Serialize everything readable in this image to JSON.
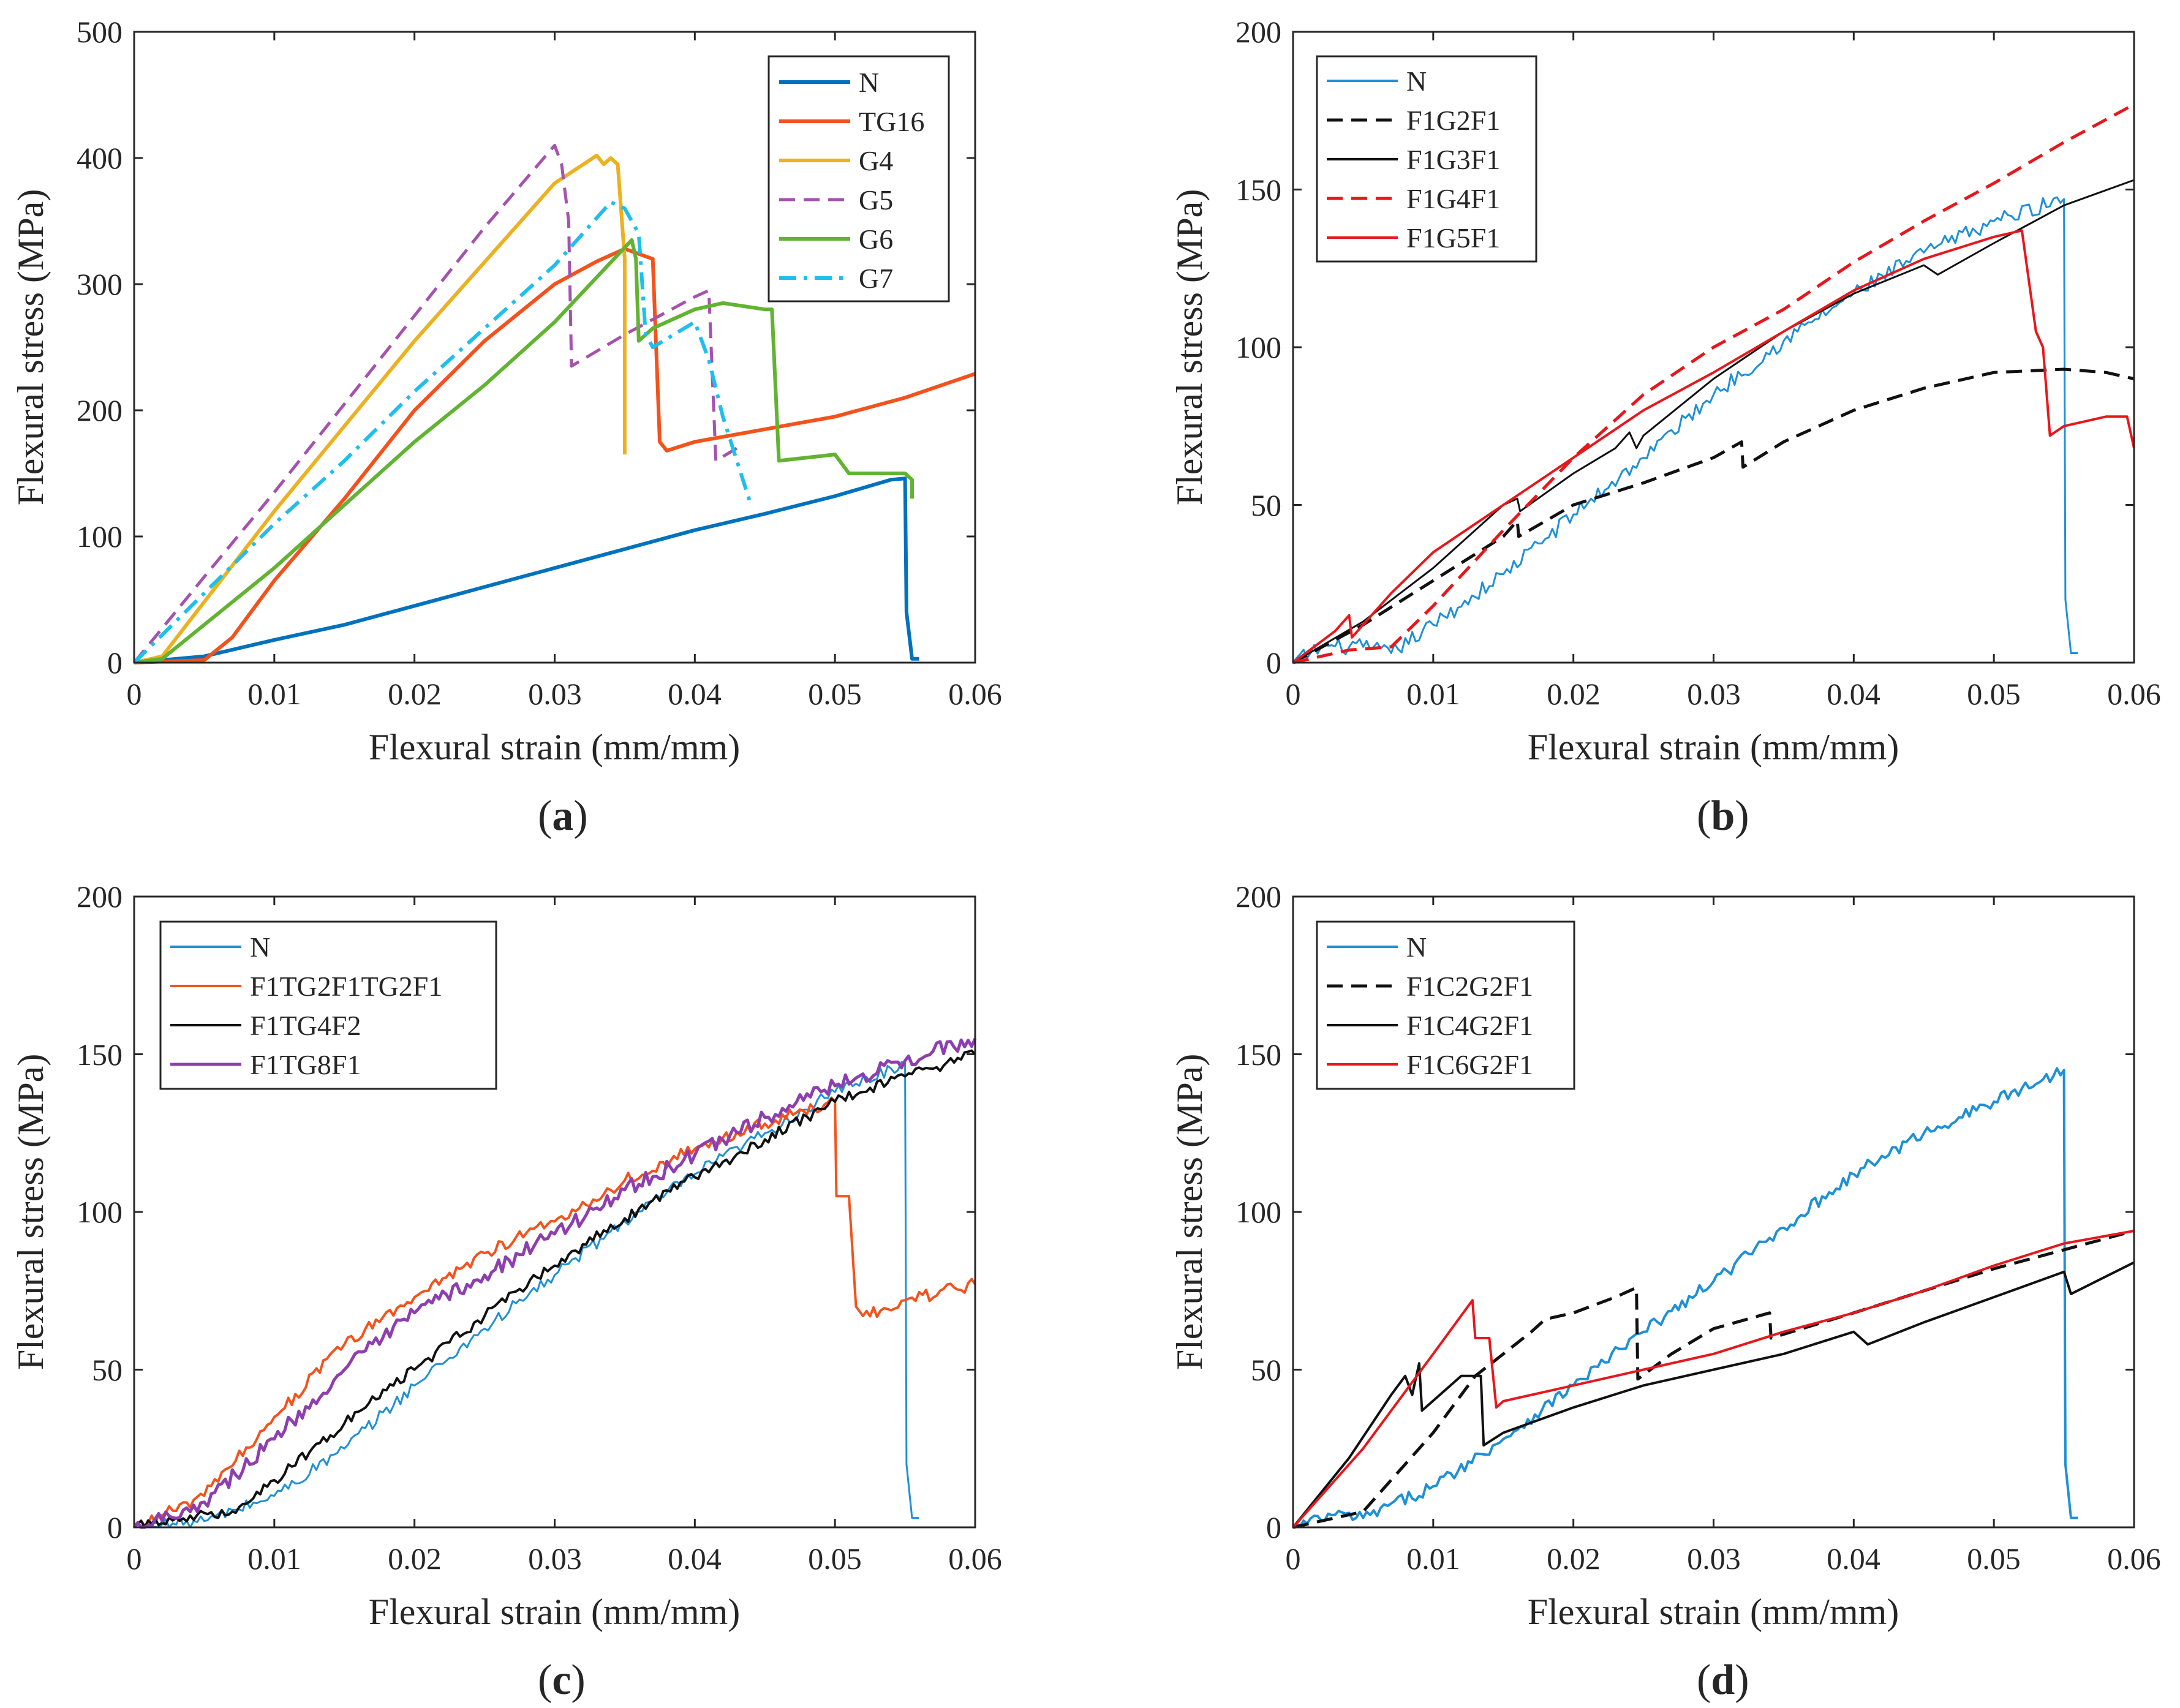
{
  "figure": {
    "colors": {
      "blue": "#0072BD",
      "lightblue": "#1E90D6",
      "orange": "#F4521C",
      "yellow": "#EDB120",
      "purple": "#A552AE",
      "green": "#61B331",
      "cyan": "#1EBFEF",
      "black": "#111111",
      "red": "#E8171C",
      "violet": "#8E3EAE",
      "axis": "#262626"
    }
  },
  "chart_data": [
    {
      "id": "a",
      "type": "line",
      "caption": "(a)",
      "caption_letter": "a",
      "xlabel": "Flexural strain (mm/mm)",
      "ylabel": "Flexural stress (MPa)",
      "xlim": [
        0,
        0.06
      ],
      "ylim": [
        0,
        500
      ],
      "xticks": [
        0,
        0.01,
        0.02,
        0.03,
        0.04,
        0.05,
        0.06
      ],
      "xtick_labels": [
        "0",
        "0.01",
        "0.02",
        "0.03",
        "0.04",
        "0.05",
        "0.06"
      ],
      "yticks": [
        0,
        100,
        200,
        300,
        400,
        500
      ],
      "ytick_labels": [
        "0",
        "100",
        "200",
        "300",
        "400",
        "500"
      ],
      "legend_position": "top-right",
      "series": [
        {
          "name": "N",
          "color": "#0072BD",
          "width": 6,
          "dash": "solid",
          "x": [
            0,
            0.005,
            0.01,
            0.015,
            0.02,
            0.025,
            0.03,
            0.035,
            0.04,
            0.045,
            0.05,
            0.054,
            0.055,
            0.0551,
            0.0555,
            0.056
          ],
          "y": [
            0,
            5,
            18,
            30,
            45,
            60,
            75,
            90,
            105,
            118,
            132,
            145,
            146,
            40,
            3,
            3
          ]
        },
        {
          "name": "TG16",
          "color": "#F4521C",
          "width": 6,
          "dash": "solid",
          "x": [
            0,
            0.005,
            0.007,
            0.01,
            0.015,
            0.02,
            0.025,
            0.03,
            0.033,
            0.035,
            0.037,
            0.0375,
            0.038,
            0.04,
            0.045,
            0.05,
            0.055,
            0.06
          ],
          "y": [
            0,
            2,
            20,
            65,
            130,
            200,
            255,
            300,
            318,
            328,
            320,
            175,
            168,
            175,
            185,
            195,
            210,
            229
          ]
        },
        {
          "name": "G4",
          "color": "#EDB120",
          "width": 6,
          "dash": "solid",
          "x": [
            0,
            0.002,
            0.01,
            0.02,
            0.03,
            0.033,
            0.0335,
            0.034,
            0.0345,
            0.035,
            0.035
          ],
          "y": [
            0,
            5,
            120,
            255,
            380,
            402,
            395,
            400,
            395,
            320,
            165
          ]
        },
        {
          "name": "G5",
          "color": "#A552AE",
          "width": 5,
          "dash": "dash",
          "x": [
            0,
            0.005,
            0.01,
            0.015,
            0.02,
            0.025,
            0.03,
            0.0305,
            0.031,
            0.0312,
            0.035,
            0.04,
            0.041,
            0.0415,
            0.043
          ],
          "y": [
            0,
            68,
            135,
            205,
            275,
            345,
            410,
            395,
            350,
            235,
            260,
            290,
            295,
            160,
            170
          ]
        },
        {
          "name": "G6",
          "color": "#61B331",
          "width": 6,
          "dash": "solid",
          "x": [
            0,
            0.002,
            0.005,
            0.01,
            0.015,
            0.02,
            0.025,
            0.03,
            0.0355,
            0.0358,
            0.036,
            0.037,
            0.04,
            0.042,
            0.045,
            0.0455,
            0.046,
            0.05,
            0.051,
            0.055,
            0.0555,
            0.0555
          ],
          "y": [
            0,
            3,
            30,
            75,
            125,
            175,
            220,
            270,
            335,
            320,
            255,
            265,
            280,
            285,
            280,
            280,
            160,
            165,
            150,
            150,
            145,
            130
          ]
        },
        {
          "name": "G7",
          "color": "#1EBFEF",
          "width": 6,
          "dash": "dashdot",
          "x": [
            0,
            0.005,
            0.01,
            0.015,
            0.02,
            0.025,
            0.03,
            0.034,
            0.035,
            0.036,
            0.0365,
            0.037,
            0.04,
            0.041,
            0.042,
            0.043,
            0.044
          ],
          "y": [
            0,
            55,
            110,
            160,
            215,
            265,
            315,
            365,
            360,
            340,
            260,
            250,
            270,
            240,
            195,
            160,
            125
          ]
        }
      ]
    },
    {
      "id": "b",
      "type": "line",
      "caption": "(b)",
      "caption_letter": "b",
      "xlabel": "Flexural strain (mm/mm)",
      "ylabel": "Flexural stress (MPa)",
      "xlim": [
        0,
        0.06
      ],
      "ylim": [
        0,
        200
      ],
      "xticks": [
        0,
        0.01,
        0.02,
        0.03,
        0.04,
        0.05,
        0.06
      ],
      "xtick_labels": [
        "0",
        "0.01",
        "0.02",
        "0.03",
        "0.04",
        "0.05",
        "0.06"
      ],
      "yticks": [
        0,
        50,
        100,
        150,
        200
      ],
      "ytick_labels": [
        "0",
        "50",
        "100",
        "150",
        "200"
      ],
      "legend_position": "top-left",
      "series": [
        {
          "name": "N",
          "color": "#1E90D6",
          "width": 3,
          "dash": "solid",
          "noise": 2.5,
          "x": [
            0,
            0.002,
            0.005,
            0.007,
            0.01,
            0.015,
            0.02,
            0.025,
            0.03,
            0.035,
            0.04,
            0.045,
            0.05,
            0.055,
            0.0551,
            0.0555,
            0.056
          ],
          "y": [
            0,
            5,
            5,
            3,
            12,
            28,
            47,
            65,
            85,
            102,
            117,
            130,
            140,
            147,
            20,
            3,
            3
          ]
        },
        {
          "name": "F1G2F1",
          "color": "#111111",
          "width": 5,
          "dash": "dash",
          "x": [
            0,
            0.005,
            0.01,
            0.015,
            0.016,
            0.0161,
            0.02,
            0.025,
            0.03,
            0.032,
            0.0321,
            0.035,
            0.04,
            0.045,
            0.05,
            0.055,
            0.058,
            0.06
          ],
          "y": [
            0,
            12,
            26,
            40,
            45,
            40,
            50,
            57,
            65,
            70,
            62,
            70,
            80,
            87,
            92,
            93,
            92,
            90
          ]
        },
        {
          "name": "F1G3F1",
          "color": "#111111",
          "width": 3,
          "dash": "solid",
          "x": [
            0,
            0.005,
            0.01,
            0.015,
            0.016,
            0.0162,
            0.02,
            0.023,
            0.024,
            0.0245,
            0.025,
            0.03,
            0.035,
            0.04,
            0.045,
            0.046,
            0.05,
            0.055,
            0.06
          ],
          "y": [
            0,
            13,
            30,
            50,
            52,
            48,
            60,
            68,
            73,
            68,
            72,
            90,
            105,
            117,
            126,
            123,
            133,
            145,
            153
          ]
        },
        {
          "name": "F1G4F1",
          "color": "#E8171C",
          "width": 5,
          "dash": "dash",
          "x": [
            0,
            0.004,
            0.007,
            0.01,
            0.015,
            0.02,
            0.025,
            0.03,
            0.035,
            0.04,
            0.045,
            0.05,
            0.055,
            0.06
          ],
          "y": [
            0,
            4,
            5,
            18,
            42,
            65,
            85,
            100,
            112,
            127,
            140,
            152,
            165,
            177
          ]
        },
        {
          "name": "F1G5F1",
          "color": "#E8171C",
          "width": 4,
          "dash": "solid",
          "x": [
            0,
            0.003,
            0.004,
            0.0042,
            0.007,
            0.01,
            0.015,
            0.02,
            0.025,
            0.03,
            0.035,
            0.04,
            0.045,
            0.05,
            0.052,
            0.053,
            0.0535,
            0.054,
            0.055,
            0.058,
            0.0595,
            0.06
          ],
          "y": [
            0,
            10,
            15,
            8,
            22,
            35,
            50,
            65,
            80,
            92,
            105,
            118,
            128,
            135,
            137,
            105,
            100,
            72,
            75,
            78,
            78,
            68
          ]
        }
      ]
    },
    {
      "id": "c",
      "type": "line",
      "caption": "(c)",
      "caption_letter": "c",
      "xlabel": "Flexural strain (mm/mm)",
      "ylabel": "Flexural stress (MPa)",
      "xlim": [
        0,
        0.06
      ],
      "ylim": [
        0,
        200
      ],
      "xticks": [
        0,
        0.01,
        0.02,
        0.03,
        0.04,
        0.05,
        0.06
      ],
      "xtick_labels": [
        "0",
        "0.01",
        "0.02",
        "0.03",
        "0.04",
        "0.05",
        "0.06"
      ],
      "yticks": [
        0,
        50,
        100,
        150,
        200
      ],
      "ytick_labels": [
        "0",
        "50",
        "100",
        "150",
        "200"
      ],
      "legend_position": "top-left",
      "series": [
        {
          "name": "N",
          "color": "#1E90D6",
          "width": 3,
          "dash": "solid",
          "noise": 2,
          "x": [
            0,
            0.005,
            0.01,
            0.015,
            0.02,
            0.025,
            0.03,
            0.035,
            0.04,
            0.045,
            0.05,
            0.055,
            0.0551,
            0.0555,
            0.056
          ],
          "y": [
            0,
            2,
            10,
            25,
            45,
            63,
            80,
            97,
            112,
            125,
            138,
            147,
            20,
            3,
            3
          ]
        },
        {
          "name": "F1TG2F1TG2F1",
          "color": "#F4521C",
          "width": 4,
          "dash": "solid",
          "noise": 2,
          "x": [
            0,
            0.005,
            0.01,
            0.015,
            0.02,
            0.025,
            0.03,
            0.035,
            0.04,
            0.045,
            0.05,
            0.0501,
            0.051,
            0.0515,
            0.052,
            0.055,
            0.06
          ],
          "y": [
            0,
            10,
            35,
            58,
            73,
            87,
            97,
            110,
            120,
            128,
            135,
            105,
            105,
            70,
            67,
            72,
            77
          ]
        },
        {
          "name": "F1TG4F2",
          "color": "#111111",
          "width": 4,
          "dash": "solid",
          "noise": 1.8,
          "x": [
            0,
            0.003,
            0.007,
            0.01,
            0.015,
            0.02,
            0.025,
            0.03,
            0.035,
            0.04,
            0.045,
            0.05,
            0.055,
            0.06
          ],
          "y": [
            0,
            3,
            5,
            15,
            33,
            50,
            67,
            83,
            98,
            111,
            123,
            135,
            143,
            150
          ]
        },
        {
          "name": "F1TG8F1",
          "color": "#8E3EAE",
          "width": 5,
          "dash": "solid",
          "noise": 2.5,
          "x": [
            0,
            0.005,
            0.01,
            0.015,
            0.02,
            0.025,
            0.03,
            0.035,
            0.04,
            0.045,
            0.05,
            0.055,
            0.06
          ],
          "y": [
            0,
            8,
            28,
            50,
            68,
            80,
            93,
            107,
            118,
            130,
            140,
            148,
            155
          ]
        }
      ]
    },
    {
      "id": "d",
      "type": "line",
      "caption": "(d)",
      "caption_letter": "d",
      "xlabel": "Flexural strain (mm/mm)",
      "ylabel": "Flexural stress (MPa)",
      "xlim": [
        0,
        0.06
      ],
      "ylim": [
        0,
        200
      ],
      "xticks": [
        0,
        0.01,
        0.02,
        0.03,
        0.04,
        0.05,
        0.06
      ],
      "xtick_labels": [
        "0",
        "0.01",
        "0.02",
        "0.03",
        "0.04",
        "0.05",
        "0.06"
      ],
      "yticks": [
        0,
        50,
        100,
        150,
        200
      ],
      "ytick_labels": [
        "0",
        "50",
        "100",
        "150",
        "200"
      ],
      "legend_position": "top-left",
      "series": [
        {
          "name": "N",
          "color": "#1E90D6",
          "width": 4,
          "dash": "solid",
          "noise": 2,
          "x": [
            0,
            0.003,
            0.005,
            0.01,
            0.015,
            0.02,
            0.025,
            0.03,
            0.035,
            0.04,
            0.045,
            0.05,
            0.055,
            0.0551,
            0.0555,
            0.056
          ],
          "y": [
            0,
            4,
            3,
            13,
            28,
            45,
            62,
            78,
            95,
            112,
            125,
            135,
            145,
            20,
            3,
            3
          ]
        },
        {
          "name": "F1C2G2F1",
          "color": "#111111",
          "width": 5,
          "dash": "dash",
          "x": [
            0,
            0.005,
            0.01,
            0.013,
            0.015,
            0.017,
            0.018,
            0.02,
            0.023,
            0.0245,
            0.0246,
            0.027,
            0.03,
            0.034,
            0.0341,
            0.04,
            0.045,
            0.05,
            0.055,
            0.06
          ],
          "y": [
            0,
            5,
            30,
            48,
            55,
            62,
            66,
            68,
            73,
            76,
            47,
            55,
            63,
            68,
            60,
            68,
            75,
            82,
            88,
            94
          ]
        },
        {
          "name": "F1C4G2F1",
          "color": "#111111",
          "width": 4,
          "dash": "solid",
          "x": [
            0,
            0.004,
            0.007,
            0.008,
            0.0085,
            0.009,
            0.0092,
            0.012,
            0.0134,
            0.0136,
            0.015,
            0.02,
            0.025,
            0.03,
            0.035,
            0.04,
            0.041,
            0.045,
            0.05,
            0.055,
            0.0555,
            0.06
          ],
          "y": [
            0,
            22,
            42,
            48,
            42,
            52,
            37,
            48,
            48,
            26,
            30,
            38,
            45,
            50,
            55,
            62,
            58,
            65,
            73,
            81,
            74,
            84
          ]
        },
        {
          "name": "F1C6G2F1",
          "color": "#E8171C",
          "width": 4,
          "dash": "solid",
          "x": [
            0,
            0.005,
            0.01,
            0.0128,
            0.013,
            0.014,
            0.0145,
            0.015,
            0.02,
            0.025,
            0.03,
            0.035,
            0.04,
            0.045,
            0.05,
            0.055,
            0.06
          ],
          "y": [
            0,
            25,
            55,
            72,
            60,
            60,
            38,
            40,
            45,
            50,
            55,
            62,
            68,
            75,
            83,
            90,
            94
          ]
        }
      ]
    }
  ]
}
